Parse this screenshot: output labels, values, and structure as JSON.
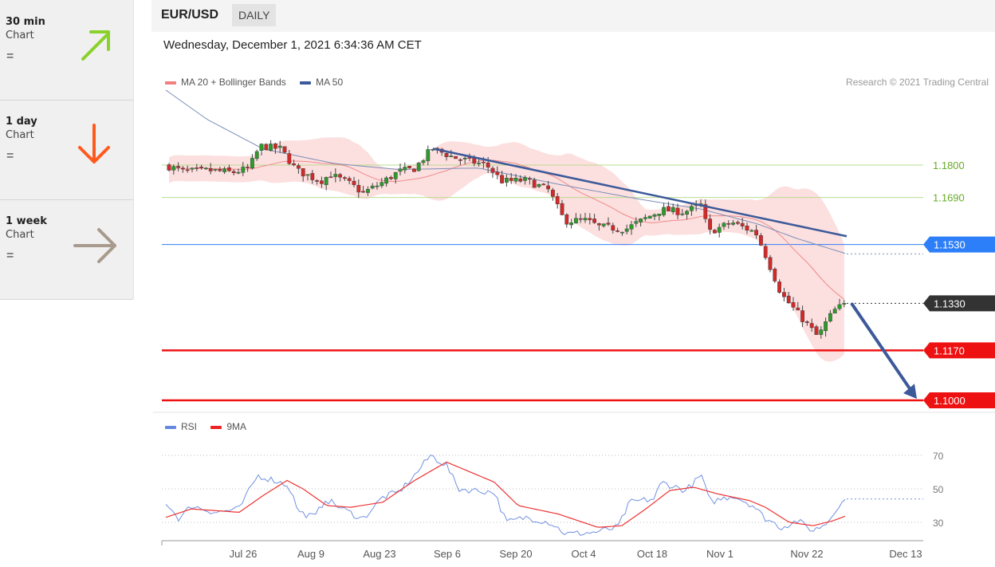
{
  "sidebar": {
    "cards": [
      {
        "title": "30 min",
        "subtitle": "Chart",
        "status": "=",
        "arrow": "up-right-arrow-icon",
        "color": "#8bd12c"
      },
      {
        "title": "1 day",
        "subtitle": "Chart",
        "status": "=",
        "arrow": "down-arrow-icon",
        "color": "#ff5a1e"
      },
      {
        "title": "1 week",
        "subtitle": "Chart",
        "status": "=",
        "arrow": "right-arrow-icon",
        "color": "#a89a8c"
      }
    ]
  },
  "header": {
    "pair": "EUR/USD",
    "timeframe": "DAILY"
  },
  "datetime": "Wednesday, December 1, 2021 6:34:36 AM CET",
  "copyright": "Research © 2021 Trading Central",
  "legend_main": [
    {
      "label": "MA 20 + Bollinger Bands",
      "color": "#f08080"
    },
    {
      "label": "MA 50",
      "color": "#3c5a9a"
    }
  ],
  "legend_rsi": [
    {
      "label": "RSI",
      "color": "#6688dd"
    },
    {
      "label": "9MA",
      "color": "#ee2222"
    }
  ],
  "chart_data": {
    "type": "candlestick",
    "title": "EUR/USD",
    "y_range": [
      1.0985,
      1.2
    ],
    "x_labels": [
      "Jul 26",
      "Aug 9",
      "Aug 23",
      "Sep 6",
      "Sep 20",
      "Oct 4",
      "Oct 18",
      "Nov 1",
      "Nov 22",
      "Dec 13"
    ],
    "levels": [
      {
        "value": 1.18,
        "label": "1.1800",
        "color": "#8bc34a",
        "kind": "resistance"
      },
      {
        "value": 1.169,
        "label": "1.1690",
        "color": "#8bc34a",
        "kind": "resistance"
      },
      {
        "value": 1.153,
        "label": "1.1530",
        "color": "#2d7ff9",
        "kind": "pivot"
      },
      {
        "value": 1.133,
        "label": "1.1330",
        "color": "#333333",
        "kind": "last"
      },
      {
        "value": 1.117,
        "label": "1.1170",
        "color": "#ee1111",
        "kind": "support"
      },
      {
        "value": 1.1,
        "label": "1.1000",
        "color": "#ee1111",
        "kind": "support"
      }
    ],
    "trendline": {
      "start": {
        "x": "Sep 2",
        "y": 1.1856
      },
      "end": {
        "x": "Nov 30",
        "y": 1.1558
      }
    },
    "forecast_arrow": {
      "start": {
        "x": "Nov 30",
        "y": 1.133
      },
      "end": {
        "x": "Dec 13",
        "y": 1.1005
      }
    },
    "rsi": {
      "levels": [
        70,
        50,
        30
      ]
    }
  }
}
